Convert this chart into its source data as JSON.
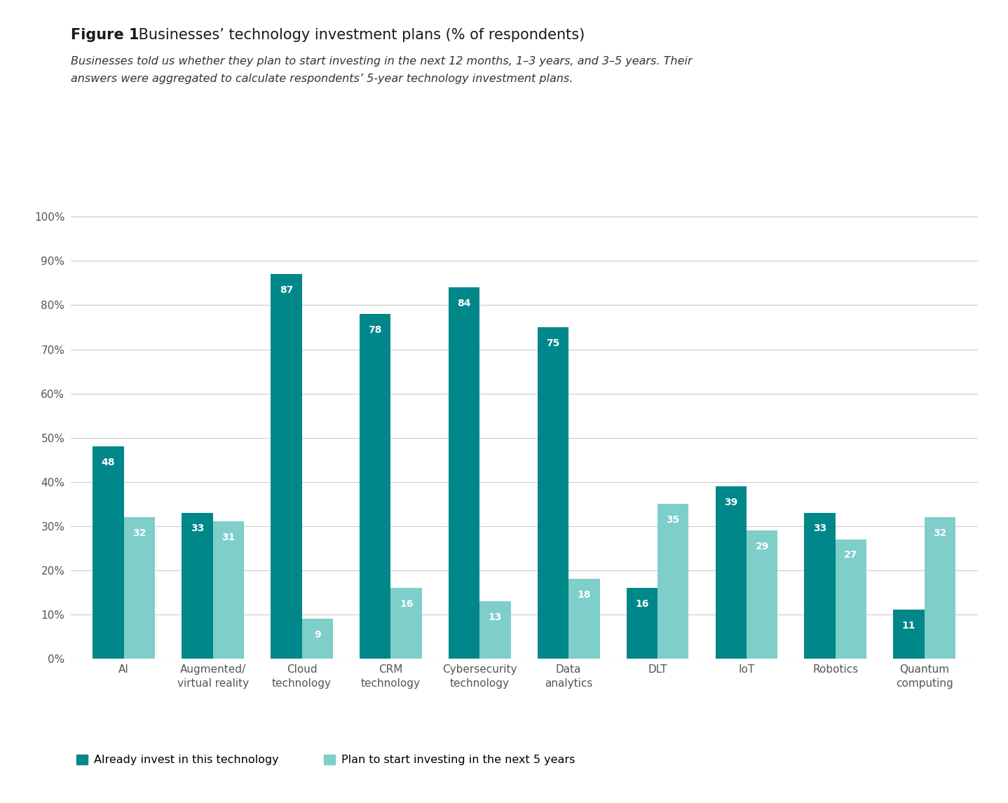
{
  "title_bold": "Figure 1",
  "title_rest": " Businesses’ technology investment plans (% of respondents)",
  "subtitle_line1": "Businesses told us whether they plan to start investing in the next 12 months, 1–3 years, and 3–5 years. Their",
  "subtitle_line2": "answers were aggregated to calculate respondents’ 5-year technology investment plans.",
  "categories": [
    "AI",
    "Augmented/\nvirtual reality",
    "Cloud\ntechnology",
    "CRM\ntechnology",
    "Cybersecurity\ntechnology",
    "Data\nanalytics",
    "DLT",
    "IoT",
    "Robotics",
    "Quantum\ncomputing"
  ],
  "already_invest": [
    48,
    33,
    87,
    78,
    84,
    75,
    16,
    39,
    33,
    11
  ],
  "plan_invest": [
    32,
    31,
    9,
    16,
    13,
    18,
    35,
    29,
    27,
    32
  ],
  "color_already": "#00878A",
  "color_plan": "#7ECECA",
  "ylim": [
    0,
    100
  ],
  "yticks": [
    0,
    10,
    20,
    30,
    40,
    50,
    60,
    70,
    80,
    90,
    100
  ],
  "ytick_labels": [
    "0%",
    "10%",
    "20%",
    "30%",
    "40%",
    "50%",
    "60%",
    "70%",
    "80%",
    "90%",
    "100%"
  ],
  "legend_already": "Already invest in this technology",
  "legend_plan": "Plan to start investing in the next 5 years",
  "bar_width": 0.35,
  "background_color": "#ffffff",
  "tick_fontsize": 11,
  "value_fontsize": 10,
  "title_fontsize": 15,
  "subtitle_fontsize": 11.5,
  "legend_fontsize": 11.5
}
